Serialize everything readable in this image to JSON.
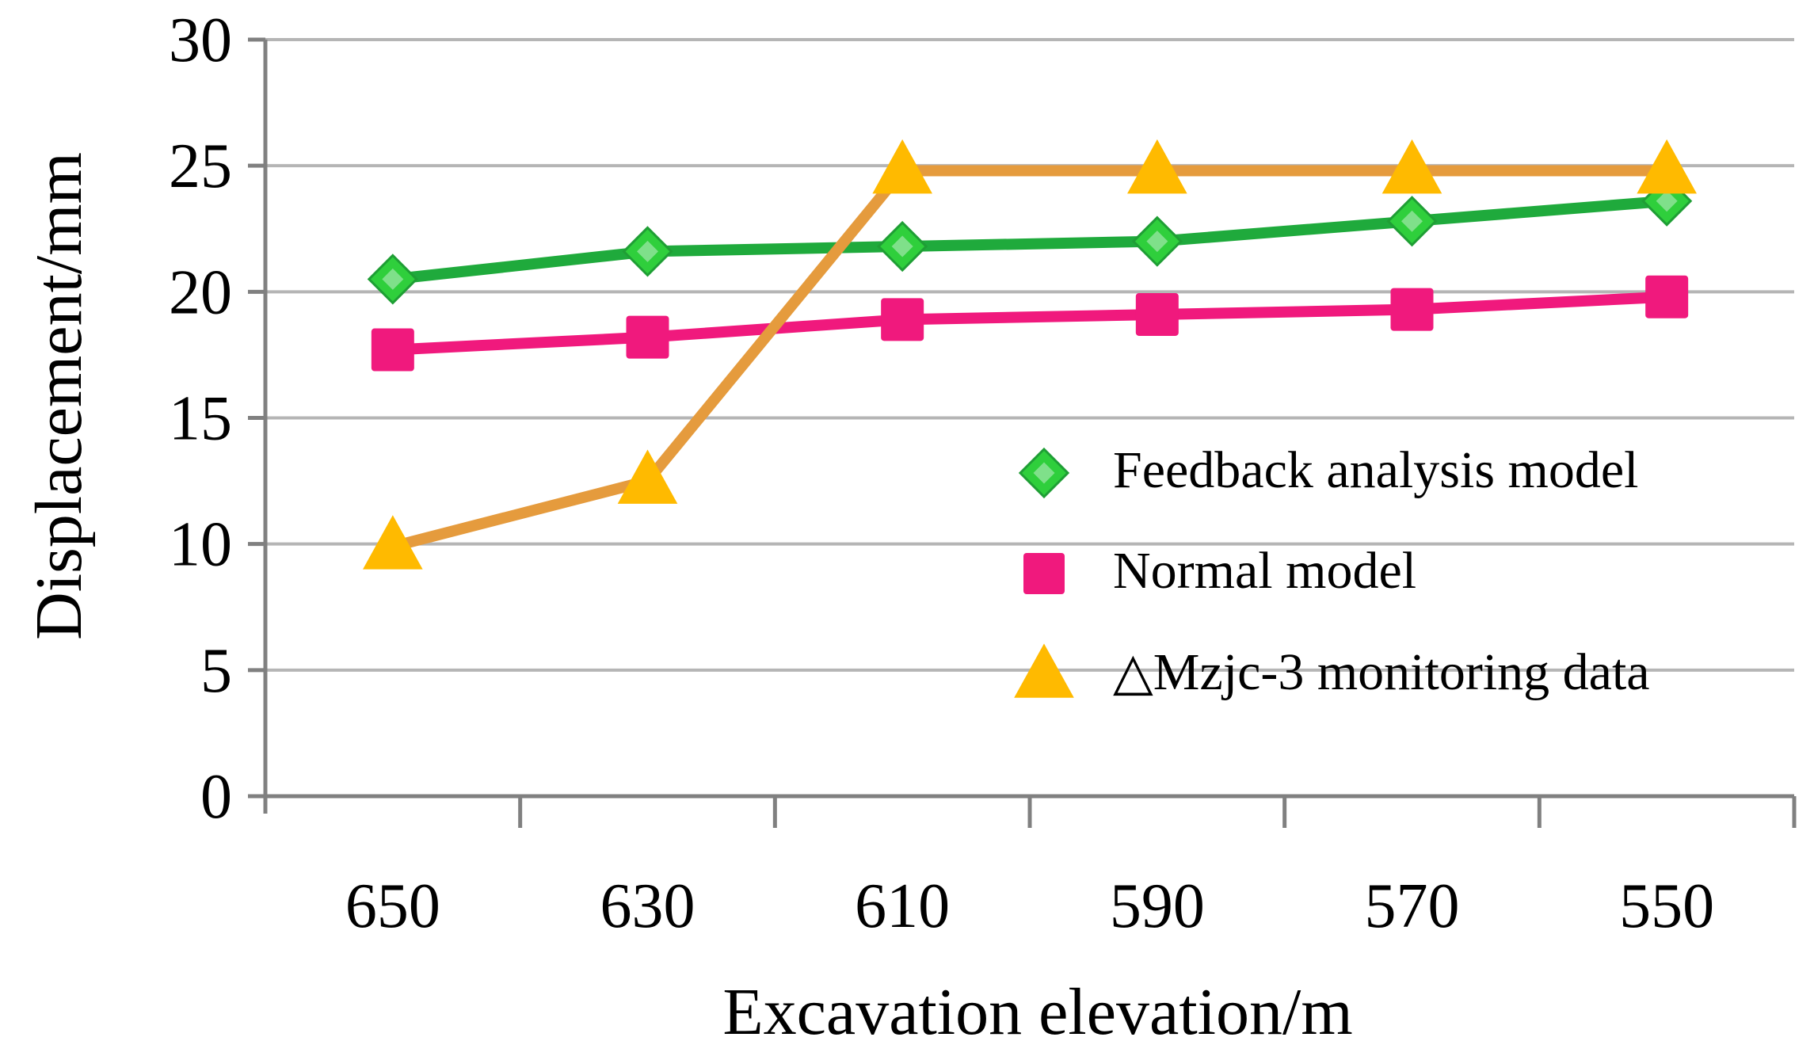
{
  "chart_data": {
    "type": "line",
    "title": "",
    "xlabel": "Excavation elevation/m",
    "ylabel": "Displacement/mm",
    "categories": [
      "650",
      "630",
      "610",
      "590",
      "570",
      "550"
    ],
    "ylim": [
      0,
      30
    ],
    "yticks": [
      "0",
      "5",
      "10",
      "15",
      "20",
      "25",
      "30"
    ],
    "grid": true,
    "legend_position": "right",
    "series": [
      {
        "name": "Feedback analysis model",
        "values": [
          20.5,
          21.6,
          21.8,
          22.0,
          22.8,
          23.6
        ],
        "color": "#1faa3c",
        "marker": "diamond",
        "marker_color": "#2fcf3c"
      },
      {
        "name": "Normal model",
        "values": [
          17.7,
          18.2,
          18.9,
          19.1,
          19.3,
          19.8
        ],
        "color": "#f0197d",
        "marker": "square",
        "marker_color": "#f0197d"
      },
      {
        "name": "△Mzjc-3 monitoring data",
        "values": [
          9.9,
          12.5,
          24.8,
          24.8,
          24.8,
          24.8
        ],
        "color": "#e59b3d",
        "marker": "triangle",
        "marker_color": "#ffba00"
      }
    ]
  }
}
